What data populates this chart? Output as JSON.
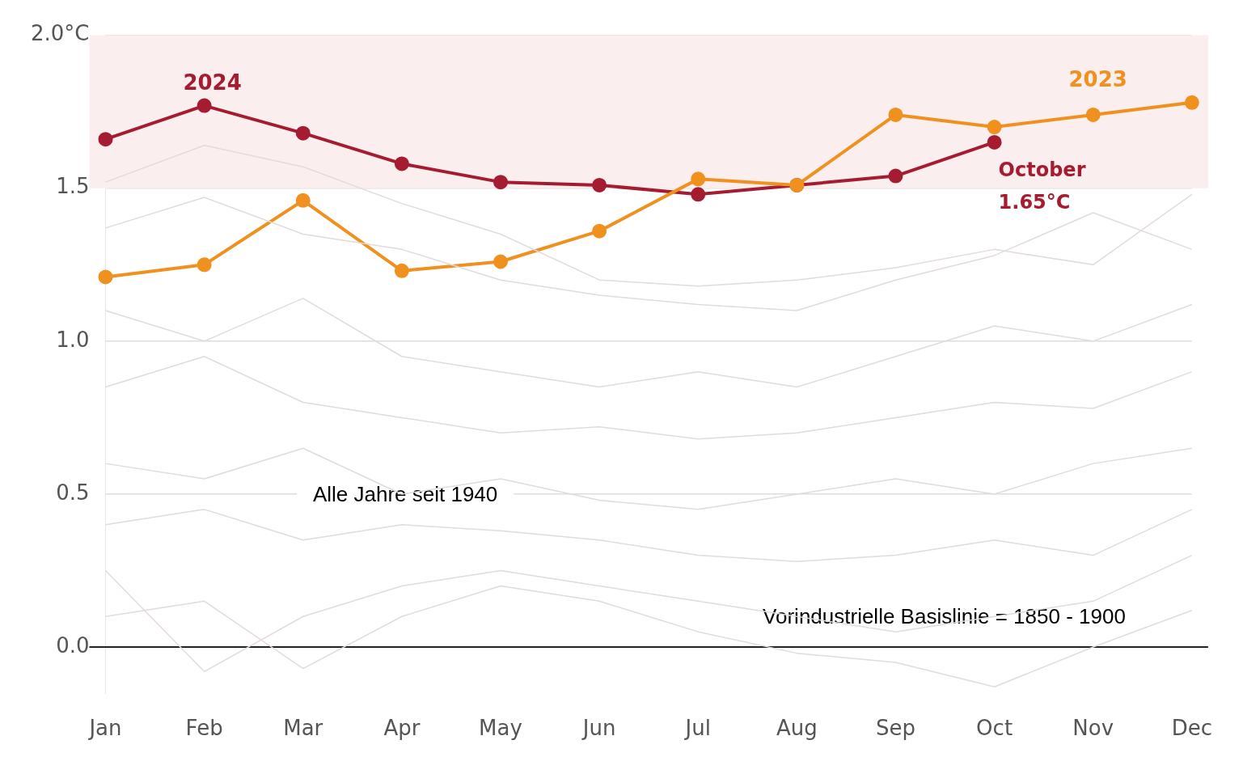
{
  "chart_data": {
    "type": "line",
    "categories": [
      "Jan",
      "Feb",
      "Mar",
      "Apr",
      "May",
      "Jun",
      "Jul",
      "Aug",
      "Sep",
      "Oct",
      "Nov",
      "Dec"
    ],
    "ylim": [
      -0.15,
      2.0
    ],
    "yticks": [
      {
        "value": 0,
        "label": "0.0"
      },
      0.5,
      {
        "value": 1,
        "label": "1.0"
      },
      1.5,
      {
        "value": 2,
        "label": "2.0°C"
      }
    ],
    "grid": "y",
    "legend": false,
    "line_style": "solid",
    "bands": [
      {
        "axis": "y",
        "from": 1.5,
        "to": 2.0,
        "color": "#fbeeee"
      }
    ],
    "series": [
      {
        "color": "#e3dada",
        "marker": "none",
        "values": [
          1.52,
          1.64,
          1.57,
          1.45,
          1.35,
          1.2,
          1.18,
          1.2,
          1.24,
          1.3,
          1.25,
          1.48
        ]
      },
      {
        "color": "#e3dada",
        "marker": "none",
        "values": [
          1.37,
          1.47,
          1.35,
          1.3,
          1.2,
          1.15,
          1.12,
          1.1,
          1.2,
          1.28,
          1.42,
          1.3
        ]
      },
      {
        "color": "#e3dada",
        "marker": "none",
        "values": [
          1.1,
          1.0,
          1.14,
          0.95,
          0.9,
          0.85,
          0.9,
          0.85,
          0.95,
          1.05,
          1.0,
          1.12
        ]
      },
      {
        "color": "#e3dada",
        "marker": "none",
        "values": [
          0.85,
          0.95,
          0.8,
          0.75,
          0.7,
          0.72,
          0.68,
          0.7,
          0.75,
          0.8,
          0.78,
          0.9
        ]
      },
      {
        "color": "#e3dada",
        "marker": "none",
        "values": [
          0.6,
          0.55,
          0.65,
          0.5,
          0.55,
          0.48,
          0.45,
          0.5,
          0.55,
          0.5,
          0.6,
          0.65
        ]
      },
      {
        "color": "#e3dada",
        "marker": "none",
        "values": [
          0.4,
          0.45,
          0.35,
          0.4,
          0.38,
          0.35,
          0.3,
          0.28,
          0.3,
          0.35,
          0.3,
          0.45
        ]
      },
      {
        "color": "#e3dada",
        "marker": "none",
        "values": [
          0.25,
          -0.08,
          0.1,
          0.2,
          0.25,
          0.2,
          0.15,
          0.1,
          0.05,
          0.1,
          0.15,
          0.3
        ]
      },
      {
        "color": "#e3dada",
        "marker": "none",
        "values": [
          0.1,
          0.15,
          -0.07,
          0.1,
          0.2,
          0.15,
          0.05,
          -0.02,
          -0.05,
          -0.13,
          0.0,
          0.12
        ]
      },
      {
        "name": "2023",
        "color": "#f0901e",
        "marker": "circle",
        "values": [
          1.21,
          1.25,
          1.46,
          1.23,
          1.26,
          1.36,
          1.53,
          1.51,
          1.74,
          1.7,
          1.74,
          1.78
        ]
      },
      {
        "name": "2024",
        "color": "#a51c30",
        "marker": "circle",
        "values": [
          1.66,
          1.77,
          1.68,
          1.58,
          1.52,
          1.51,
          1.48,
          1.51,
          1.54,
          1.65,
          null,
          null
        ]
      }
    ],
    "annotations": [
      {
        "text": "October\n1.65°C",
        "x": "Oct",
        "y": 1.65
      },
      "Alle Jahre seit 1940",
      "Vorindustrielle Basislinie = 1850 - 1900"
    ]
  }
}
